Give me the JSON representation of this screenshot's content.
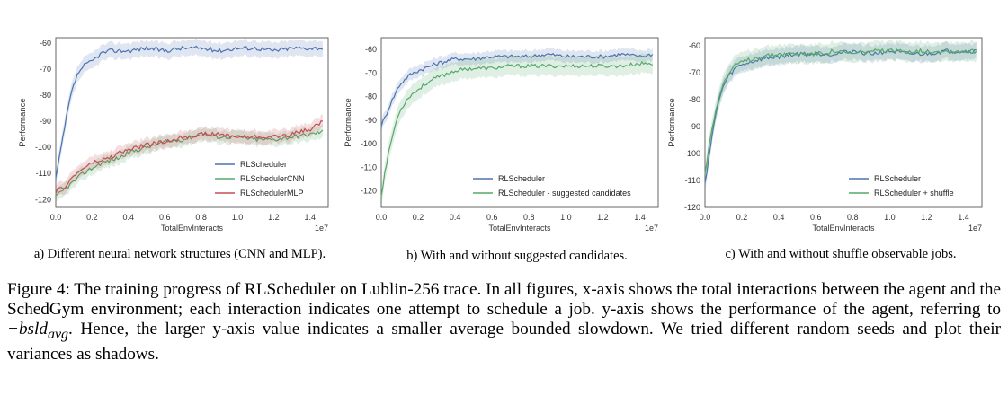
{
  "colors": {
    "blue": "#4c72b0",
    "green": "#55a868",
    "red": "#c44e52",
    "frame": "#555555"
  },
  "chart_data": [
    {
      "type": "line",
      "caption": "a) Different neural network structures (CNN and MLP).",
      "xlabel": "TotalEnvInteracts",
      "xoffset_label": "1e7",
      "ylabel": "Performance",
      "xlim": [
        0,
        1.5
      ],
      "ylim": [
        -123,
        -58
      ],
      "xticks": [
        0.0,
        0.2,
        0.4,
        0.6,
        0.8,
        1.0,
        1.2,
        1.4
      ],
      "xtick_labels": [
        "0.0",
        "0.2",
        "0.4",
        "0.6",
        "0.8",
        "1.0",
        "1.2",
        "1.4"
      ],
      "yticks": [
        -60,
        -70,
        -80,
        -90,
        -100,
        -110,
        -120
      ],
      "ytick_labels": [
        "-60",
        "-70",
        "-80",
        "-90",
        "-100",
        "-110",
        "-120"
      ],
      "grid": false,
      "legend_position": "lower-right",
      "series": [
        {
          "name": "RLScheduler",
          "color": "blue",
          "x": [
            0.0,
            0.02,
            0.04,
            0.06,
            0.08,
            0.1,
            0.12,
            0.15,
            0.2,
            0.25,
            0.3,
            0.4,
            0.5,
            0.6,
            0.7,
            0.8,
            0.9,
            1.0,
            1.1,
            1.2,
            1.3,
            1.4,
            1.47
          ],
          "y": [
            -112,
            -104,
            -96,
            -88,
            -81,
            -76,
            -72,
            -69,
            -67,
            -64,
            -63,
            -63,
            -62,
            -63,
            -62,
            -62,
            -63,
            -62,
            -62,
            -63,
            -62,
            -62,
            -62
          ],
          "band": 3
        },
        {
          "name": "RLSchedulerCNN",
          "color": "green",
          "x": [
            0.0,
            0.05,
            0.1,
            0.15,
            0.2,
            0.25,
            0.3,
            0.35,
            0.4,
            0.5,
            0.6,
            0.7,
            0.8,
            0.9,
            1.0,
            1.1,
            1.2,
            1.3,
            1.4,
            1.47
          ],
          "y": [
            -119,
            -116,
            -113,
            -110,
            -108,
            -106,
            -105,
            -104,
            -102,
            -100,
            -98,
            -97,
            -95,
            -96,
            -96,
            -97,
            -97,
            -96,
            -95,
            -94
          ],
          "band": 2.5
        },
        {
          "name": "RLSchedulerMLP",
          "color": "red",
          "x": [
            0.0,
            0.05,
            0.1,
            0.15,
            0.2,
            0.25,
            0.3,
            0.35,
            0.4,
            0.5,
            0.6,
            0.7,
            0.8,
            0.9,
            1.0,
            1.1,
            1.2,
            1.3,
            1.4,
            1.47
          ],
          "y": [
            -117,
            -115,
            -111,
            -108,
            -106,
            -105,
            -104,
            -102,
            -101,
            -99,
            -98,
            -96,
            -95,
            -95,
            -96,
            -96,
            -96,
            -95,
            -93,
            -90
          ],
          "band": 2.5
        }
      ]
    },
    {
      "type": "line",
      "caption": "b) With and without suggested candidates.",
      "xlabel": "TotalEnvInteracts",
      "xoffset_label": "1e7",
      "ylabel": "Performance",
      "xlim": [
        0,
        1.5
      ],
      "ylim": [
        -127,
        -55
      ],
      "xticks": [
        0.0,
        0.2,
        0.4,
        0.6,
        0.8,
        1.0,
        1.2,
        1.4
      ],
      "xtick_labels": [
        "0.0",
        "0.2",
        "0.4",
        "0.6",
        "0.8",
        "1.0",
        "1.2",
        "1.4"
      ],
      "yticks": [
        -60,
        -70,
        -80,
        -90,
        -100,
        -110,
        -120
      ],
      "ytick_labels": [
        "-60",
        "-70",
        "-80",
        "-90",
        "-100",
        "-110",
        "-120"
      ],
      "grid": false,
      "legend_position": "lower-right",
      "series": [
        {
          "name": "RLScheduler",
          "color": "blue",
          "x": [
            0.0,
            0.02,
            0.05,
            0.08,
            0.1,
            0.15,
            0.2,
            0.3,
            0.4,
            0.5,
            0.6,
            0.7,
            0.8,
            0.9,
            1.0,
            1.1,
            1.2,
            1.3,
            1.4,
            1.47
          ],
          "y": [
            -92,
            -89,
            -83,
            -78,
            -75,
            -71,
            -69,
            -66,
            -64,
            -64,
            -63,
            -63,
            -63,
            -62,
            -63,
            -63,
            -63,
            -62,
            -63,
            -62
          ],
          "band": 2.5
        },
        {
          "name": "RLScheduler - suggested candidates",
          "color": "green",
          "x": [
            0.0,
            0.02,
            0.05,
            0.08,
            0.1,
            0.15,
            0.2,
            0.25,
            0.3,
            0.4,
            0.5,
            0.6,
            0.7,
            0.8,
            0.9,
            1.0,
            1.1,
            1.2,
            1.3,
            1.4,
            1.47
          ],
          "y": [
            -122,
            -112,
            -100,
            -91,
            -86,
            -80,
            -77,
            -74,
            -72,
            -69,
            -68,
            -68,
            -67,
            -67,
            -67,
            -67,
            -67,
            -67,
            -67,
            -66,
            -66
          ],
          "band": 4
        }
      ]
    },
    {
      "type": "line",
      "caption": "c) With and without shuffle observable jobs.",
      "xlabel": "TotalEnvInteracts",
      "xoffset_label": "1e7",
      "ylabel": "Performance",
      "xlim": [
        0,
        1.5
      ],
      "ylim": [
        -120,
        -57
      ],
      "xticks": [
        0.0,
        0.2,
        0.4,
        0.6,
        0.8,
        1.0,
        1.2,
        1.4
      ],
      "xtick_labels": [
        "0.0",
        "0.2",
        "0.4",
        "0.6",
        "0.8",
        "1.0",
        "1.2",
        "1.4"
      ],
      "yticks": [
        -60,
        -70,
        -80,
        -90,
        -100,
        -110,
        -120
      ],
      "ytick_labels": [
        "-60",
        "-70",
        "-80",
        "-90",
        "-100",
        "-110",
        "-120"
      ],
      "grid": false,
      "legend_position": "lower-right",
      "series": [
        {
          "name": "RLScheduler",
          "color": "blue",
          "x": [
            0.0,
            0.02,
            0.04,
            0.06,
            0.08,
            0.1,
            0.13,
            0.17,
            0.2,
            0.25,
            0.3,
            0.4,
            0.5,
            0.6,
            0.7,
            0.8,
            0.9,
            1.0,
            1.1,
            1.2,
            1.3,
            1.4,
            1.47
          ],
          "y": [
            -111,
            -102,
            -93,
            -85,
            -79,
            -75,
            -71,
            -68,
            -67,
            -66,
            -65,
            -64,
            -63,
            -63,
            -63,
            -62,
            -63,
            -62,
            -63,
            -63,
            -62,
            -62,
            -62
          ],
          "band": 3
        },
        {
          "name": "RLScheduler + shuffle",
          "color": "green",
          "x": [
            0.0,
            0.02,
            0.04,
            0.06,
            0.08,
            0.1,
            0.13,
            0.17,
            0.2,
            0.25,
            0.3,
            0.4,
            0.5,
            0.6,
            0.7,
            0.8,
            0.9,
            1.0,
            1.1,
            1.2,
            1.3,
            1.4,
            1.47
          ],
          "y": [
            -108,
            -98,
            -90,
            -83,
            -78,
            -74,
            -70,
            -67,
            -66,
            -65,
            -64,
            -63,
            -63,
            -63,
            -62,
            -63,
            -62,
            -62,
            -62,
            -62,
            -62,
            -62,
            -62
          ],
          "band": 3.5
        }
      ]
    }
  ],
  "caption": {
    "label": "Figure 4:",
    "text_before_math": " The training progress of RLScheduler on Lublin-256 trace. In all figures, x-axis shows the total interactions between the agent and the SchedGym environment; each interaction indicates one attempt to schedule a job.  y-axis shows the performance of the agent, referring to ",
    "math": "−bsld",
    "math_sub": "avg",
    "text_after_math": ". Hence, the larger y-axis value indicates a smaller average bounded slowdown. We tried different random seeds and plot their variances as shadows."
  }
}
